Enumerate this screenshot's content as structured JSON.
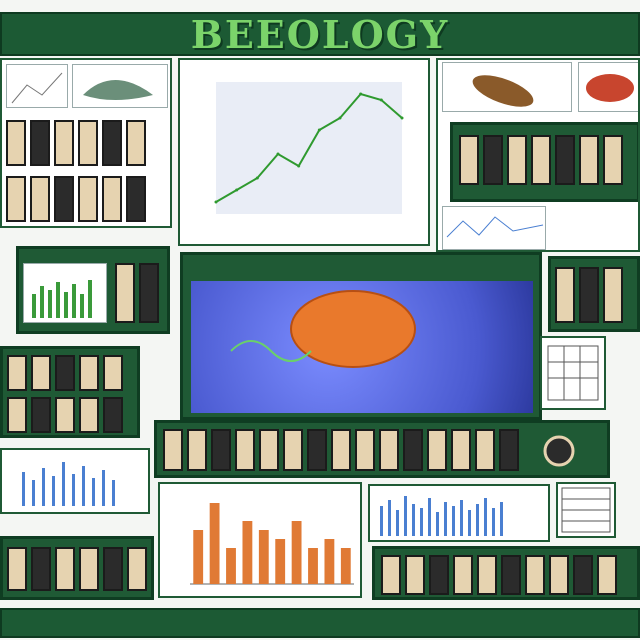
{
  "header": {
    "title": "BEEOLOGY",
    "left_tag": "",
    "right_tag": ""
  },
  "center_panel": {
    "title": "",
    "chart_caption": ""
  },
  "colors": {
    "panel_green": "#1f5a35",
    "title_green": "#7bd36a",
    "blob_orange": "#e9792c",
    "micro_blue": "#5b6fe0",
    "bar_orange": "#e07a35",
    "bar_blue": "#4a7fd1",
    "line_green": "#2f9a2f"
  },
  "chart_data": [
    {
      "type": "line",
      "title": "",
      "xlabel": "",
      "ylabel": "",
      "x": [
        1,
        2,
        3,
        4,
        5,
        6,
        7,
        8,
        9,
        10
      ],
      "values": [
        1,
        2,
        3,
        5,
        4,
        7,
        8,
        10,
        9.5,
        8
      ],
      "ylim": [
        0,
        11
      ]
    },
    {
      "type": "bar",
      "title": "",
      "xlabel": "",
      "ylabel": "",
      "categories": [
        "1",
        "2",
        "3",
        "4",
        "5",
        "6",
        "7",
        "8",
        "9",
        "10"
      ],
      "values": [
        6,
        9,
        4,
        7,
        6,
        5,
        7,
        4,
        5,
        4
      ],
      "ylim": [
        0,
        10
      ]
    }
  ],
  "footer": {
    "text": ""
  },
  "icons": [
    "leaf-icon",
    "insect-icon",
    "microscope-icon",
    "magnifier-icon"
  ]
}
